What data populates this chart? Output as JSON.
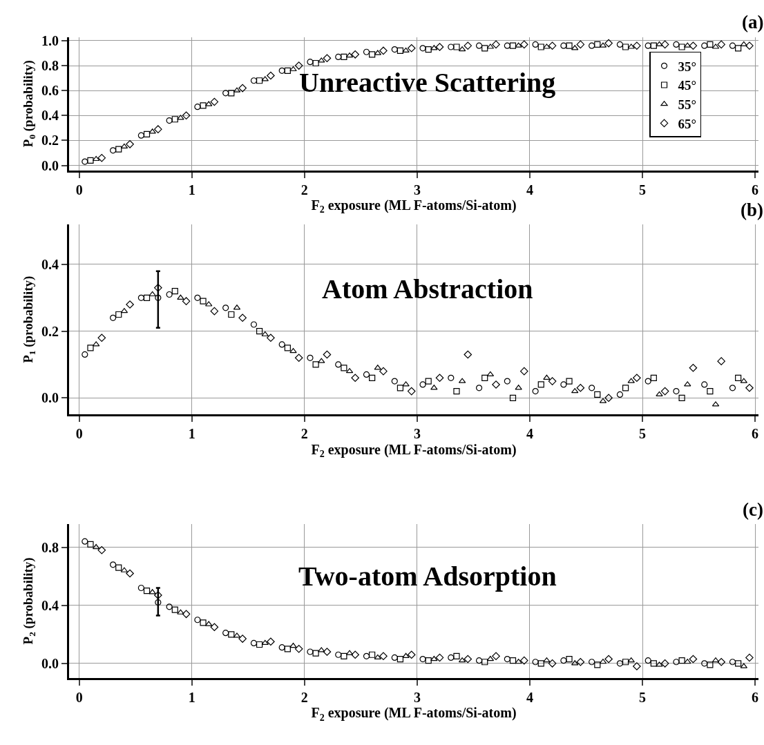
{
  "chart_data": [
    {
      "type": "scatter",
      "xlabel": "F$_{2}$ exposure (ML F-atoms/Si-atom)",
      "ylabel": "P$_{0}$ (probability)",
      "annotations": [
        "(a)",
        "Unreactive Scattering"
      ],
      "xlim": [
        -0.09,
        6.03
      ],
      "xticks": [
        0,
        1,
        2,
        3,
        4,
        5,
        6
      ],
      "ylim": [
        -0.04,
        1.03
      ],
      "yticks": [
        {
          "value": 0,
          "label": "0.0"
        },
        {
          "value": 0.2,
          "label": "0.2"
        },
        {
          "value": 0.4,
          "label": "0.4"
        },
        {
          "value": 0.6,
          "label": "0.6"
        },
        {
          "value": 0.8,
          "label": "0.8"
        },
        {
          "value": 1,
          "label": "1.0"
        }
      ],
      "grid": true,
      "legend": "top right",
      "series": [
        {
          "name": "35°",
          "color": "#000000",
          "marker": "circle",
          "x": [
            0.05,
            0.3,
            0.55,
            0.8,
            1.05,
            1.3,
            1.55,
            1.8,
            2.05,
            2.3,
            2.55,
            2.8,
            3.05,
            3.3,
            3.55,
            3.8,
            4.05,
            4.3,
            4.55,
            4.8,
            5.05,
            5.3,
            5.55,
            5.8
          ],
          "values": [
            0.03,
            0.12,
            0.24,
            0.36,
            0.47,
            0.58,
            0.68,
            0.76,
            0.83,
            0.87,
            0.91,
            0.93,
            0.94,
            0.95,
            0.96,
            0.96,
            0.97,
            0.96,
            0.96,
            0.97,
            0.96,
            0.97,
            0.96,
            0.96
          ]
        },
        {
          "name": "45°",
          "color": "#000000",
          "marker": "square",
          "x": [
            0.1,
            0.35,
            0.6,
            0.85,
            1.1,
            1.35,
            1.6,
            1.85,
            2.1,
            2.35,
            2.6,
            2.85,
            3.1,
            3.35,
            3.6,
            3.85,
            4.1,
            4.35,
            4.6,
            4.85,
            5.1,
            5.35,
            5.6,
            5.85
          ],
          "values": [
            0.04,
            0.13,
            0.25,
            0.37,
            0.48,
            0.58,
            0.68,
            0.76,
            0.82,
            0.87,
            0.89,
            0.92,
            0.93,
            0.95,
            0.94,
            0.96,
            0.95,
            0.96,
            0.97,
            0.95,
            0.96,
            0.95,
            0.97,
            0.94
          ]
        },
        {
          "name": "55°",
          "color": "#000000",
          "marker": "triangle",
          "x": [
            0.15,
            0.4,
            0.65,
            0.9,
            1.15,
            1.4,
            1.65,
            1.9,
            2.15,
            2.4,
            2.65,
            2.9,
            3.15,
            3.4,
            3.65,
            3.9,
            4.15,
            4.4,
            4.65,
            4.9,
            5.15,
            5.4,
            5.65,
            5.9
          ],
          "values": [
            0.05,
            0.15,
            0.27,
            0.38,
            0.49,
            0.6,
            0.69,
            0.77,
            0.84,
            0.88,
            0.9,
            0.92,
            0.94,
            0.93,
            0.95,
            0.96,
            0.95,
            0.94,
            0.96,
            0.95,
            0.97,
            0.96,
            0.95,
            0.97
          ]
        },
        {
          "name": "65°",
          "color": "#000000",
          "marker": "diamond",
          "x": [
            0.2,
            0.45,
            0.7,
            0.95,
            1.2,
            1.45,
            1.7,
            1.95,
            2.2,
            2.45,
            2.7,
            2.95,
            3.2,
            3.45,
            3.7,
            3.95,
            4.2,
            4.45,
            4.7,
            4.95,
            5.2,
            5.45,
            5.7,
            5.95
          ],
          "values": [
            0.06,
            0.17,
            0.29,
            0.4,
            0.51,
            0.62,
            0.72,
            0.8,
            0.86,
            0.89,
            0.92,
            0.94,
            0.95,
            0.96,
            0.97,
            0.97,
            0.96,
            0.97,
            0.98,
            0.96,
            0.97,
            0.96,
            0.97,
            0.96
          ]
        }
      ]
    },
    {
      "type": "scatter",
      "xlabel": "F$_{2}$ exposure (ML F-atoms/Si-atom)",
      "ylabel": "P$_{1}$ (probability)",
      "annotations": [
        "(b)",
        "Atom Abstraction"
      ],
      "xlim": [
        -0.09,
        6.03
      ],
      "xticks": [
        0,
        1,
        2,
        3,
        4,
        5,
        6
      ],
      "ylim": [
        -0.05,
        0.52
      ],
      "yticks": [
        {
          "value": 0,
          "label": "0.0"
        },
        {
          "value": 0.2,
          "label": "0.2"
        },
        {
          "value": 0.4,
          "label": "0.4"
        }
      ],
      "grid": true,
      "series": [
        {
          "color": "#000000",
          "marker": "circle",
          "x": [
            0.05,
            0.3,
            0.55,
            0.8,
            1.05,
            1.3,
            1.55,
            1.8,
            2.05,
            2.3,
            2.55,
            2.8,
            3.05,
            3.3,
            3.55,
            3.8,
            4.05,
            4.3,
            4.55,
            4.8,
            5.05,
            5.3,
            5.55,
            5.8
          ],
          "values": [
            0.13,
            0.24,
            0.3,
            0.31,
            0.3,
            0.27,
            0.22,
            0.16,
            0.12,
            0.1,
            0.07,
            0.05,
            0.04,
            0.06,
            0.03,
            0.05,
            0.02,
            0.04,
            0.03,
            0.01,
            0.05,
            0.02,
            0.04,
            0.03
          ]
        },
        {
          "color": "#000000",
          "marker": "square",
          "x": [
            0.1,
            0.35,
            0.6,
            0.85,
            1.1,
            1.35,
            1.6,
            1.85,
            2.1,
            2.35,
            2.6,
            2.85,
            3.1,
            3.35,
            3.6,
            3.85,
            4.1,
            4.35,
            4.6,
            4.85,
            5.1,
            5.35,
            5.6,
            5.85
          ],
          "values": [
            0.15,
            0.25,
            0.3,
            0.32,
            0.29,
            0.25,
            0.2,
            0.15,
            0.1,
            0.09,
            0.06,
            0.03,
            0.05,
            0.02,
            0.06,
            0.0,
            0.04,
            0.05,
            0.01,
            0.03,
            0.06,
            0.0,
            0.02,
            0.06
          ]
        },
        {
          "color": "#000000",
          "marker": "triangle",
          "x": [
            0.15,
            0.4,
            0.65,
            0.9,
            1.15,
            1.4,
            1.65,
            1.9,
            2.15,
            2.4,
            2.65,
            2.9,
            3.15,
            3.4,
            3.65,
            3.9,
            4.15,
            4.4,
            4.65,
            4.9,
            5.15,
            5.4,
            5.65,
            5.9
          ],
          "values": [
            0.16,
            0.26,
            0.31,
            0.3,
            0.28,
            0.27,
            0.19,
            0.14,
            0.11,
            0.08,
            0.09,
            0.04,
            0.03,
            0.05,
            0.07,
            0.03,
            0.06,
            0.02,
            -0.01,
            0.05,
            0.01,
            0.04,
            -0.02,
            0.05
          ]
        },
        {
          "color": "#000000",
          "marker": "diamond",
          "x": [
            0.2,
            0.45,
            0.7,
            0.95,
            1.2,
            1.45,
            1.7,
            1.95,
            2.2,
            2.45,
            2.7,
            2.95,
            3.2,
            3.45,
            3.7,
            3.95,
            4.2,
            4.45,
            4.7,
            4.95,
            5.2,
            5.45,
            5.7,
            5.95
          ],
          "values": [
            0.18,
            0.28,
            0.33,
            0.29,
            0.26,
            0.24,
            0.18,
            0.12,
            0.13,
            0.06,
            0.08,
            0.02,
            0.06,
            0.13,
            0.04,
            0.08,
            0.05,
            0.03,
            0.0,
            0.06,
            0.02,
            0.09,
            0.11,
            0.03
          ]
        },
        {
          "color": "#000000",
          "marker": "circle",
          "x": [
            0.7
          ],
          "values": [
            0.3
          ],
          "errors": [
            [
              0.21,
              0.38
            ]
          ]
        }
      ]
    },
    {
      "type": "scatter",
      "xlabel": "F$_{2}$ exposure (ML F-atoms/Si-atom)",
      "ylabel": "P$_{2}$ (probability)",
      "annotations": [
        "(c)",
        "Two-atom Adsorption"
      ],
      "xlim": [
        -0.09,
        6.03
      ],
      "xticks": [
        0,
        1,
        2,
        3,
        4,
        5,
        6
      ],
      "ylim": [
        -0.1,
        0.96
      ],
      "yticks": [
        {
          "value": 0,
          "label": "0.0"
        },
        {
          "value": 0.4,
          "label": "0.4"
        },
        {
          "value": 0.8,
          "label": "0.8"
        }
      ],
      "grid": true,
      "series": [
        {
          "color": "#000000",
          "marker": "circle",
          "x": [
            0.05,
            0.3,
            0.55,
            0.8,
            1.05,
            1.3,
            1.55,
            1.8,
            2.05,
            2.3,
            2.55,
            2.8,
            3.05,
            3.3,
            3.55,
            3.8,
            4.05,
            4.3,
            4.55,
            4.8,
            5.05,
            5.3,
            5.55,
            5.8
          ],
          "values": [
            0.84,
            0.68,
            0.52,
            0.39,
            0.3,
            0.21,
            0.14,
            0.11,
            0.08,
            0.06,
            0.05,
            0.04,
            0.03,
            0.04,
            0.02,
            0.03,
            0.01,
            0.02,
            0.01,
            0.0,
            0.02,
            0.01,
            0.0,
            0.01
          ]
        },
        {
          "color": "#000000",
          "marker": "square",
          "x": [
            0.1,
            0.35,
            0.6,
            0.85,
            1.1,
            1.35,
            1.6,
            1.85,
            2.1,
            2.35,
            2.6,
            2.85,
            3.1,
            3.35,
            3.6,
            3.85,
            4.1,
            4.35,
            4.6,
            4.85,
            5.1,
            5.35,
            5.6,
            5.85
          ],
          "values": [
            0.82,
            0.66,
            0.5,
            0.37,
            0.28,
            0.2,
            0.13,
            0.1,
            0.07,
            0.05,
            0.06,
            0.03,
            0.02,
            0.05,
            0.01,
            0.02,
            0.0,
            0.03,
            -0.01,
            0.01,
            0.0,
            0.02,
            -0.01,
            0.0
          ]
        },
        {
          "color": "#000000",
          "marker": "triangle",
          "x": [
            0.15,
            0.4,
            0.65,
            0.9,
            1.15,
            1.4,
            1.65,
            1.9,
            2.15,
            2.4,
            2.65,
            2.9,
            3.15,
            3.4,
            3.65,
            3.9,
            4.15,
            4.4,
            4.65,
            4.9,
            5.15,
            5.4,
            5.65,
            5.9
          ],
          "values": [
            0.8,
            0.64,
            0.49,
            0.35,
            0.27,
            0.19,
            0.14,
            0.12,
            0.09,
            0.07,
            0.04,
            0.05,
            0.03,
            0.02,
            0.03,
            0.01,
            0.02,
            0.0,
            0.01,
            0.02,
            -0.01,
            0.01,
            0.02,
            -0.02
          ]
        },
        {
          "color": "#000000",
          "marker": "diamond",
          "x": [
            0.2,
            0.45,
            0.7,
            0.95,
            1.2,
            1.45,
            1.7,
            1.95,
            2.2,
            2.45,
            2.7,
            2.95,
            3.2,
            3.45,
            3.7,
            3.95,
            4.2,
            4.45,
            4.7,
            4.95,
            5.2,
            5.45,
            5.7,
            5.95
          ],
          "values": [
            0.78,
            0.62,
            0.47,
            0.34,
            0.25,
            0.17,
            0.15,
            0.1,
            0.08,
            0.06,
            0.05,
            0.06,
            0.04,
            0.03,
            0.05,
            0.02,
            0.0,
            0.01,
            0.03,
            -0.02,
            0.0,
            0.03,
            0.01,
            0.04
          ]
        },
        {
          "color": "#000000",
          "marker": "circle",
          "x": [
            0.7
          ],
          "values": [
            0.42
          ],
          "errors": [
            [
              0.33,
              0.52
            ]
          ]
        }
      ]
    }
  ]
}
